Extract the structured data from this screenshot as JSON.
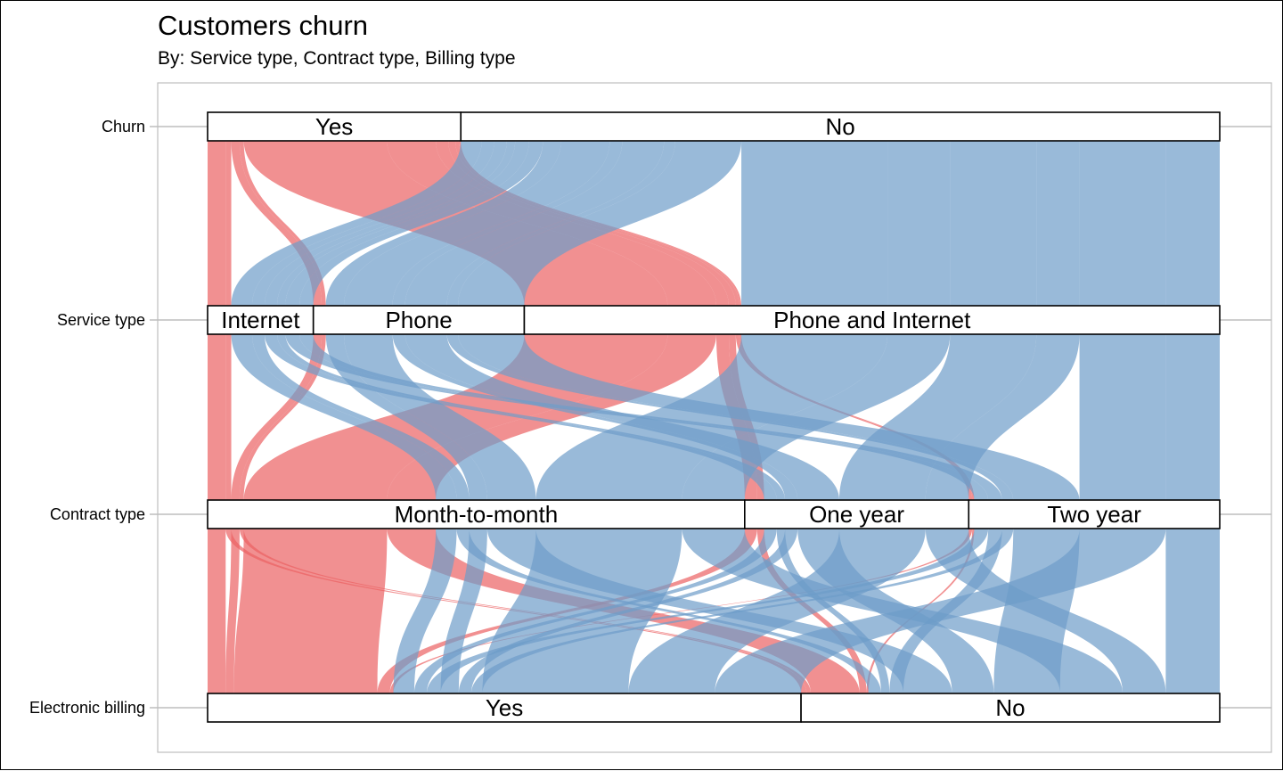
{
  "title": "Customers churn",
  "subtitle": "By: Service type, Contract type, Billing type",
  "colors": {
    "churn_yes": "#EB6163",
    "churn_no": "#6E9DC9",
    "box_fill": "#FFFFFF",
    "box_stroke": "#000000",
    "gridline": "#BEBEBE",
    "panel_border": "#BEBEBE"
  },
  "chart_data": {
    "type": "alluvial",
    "axes": [
      "Churn",
      "Service type",
      "Contract type",
      "Electronic billing"
    ],
    "strata": {
      "Churn": [
        "Yes",
        "No"
      ],
      "Service type": [
        "Internet",
        "Phone",
        "Phone and Internet"
      ],
      "Contract type": [
        "Month-to-month",
        "One year",
        "Two year"
      ],
      "Electronic billing": [
        "Yes",
        "No"
      ]
    },
    "flows": [
      {
        "churn": "Yes",
        "service": "Internet",
        "contract": "Month-to-month",
        "billing": "Yes",
        "value": 130
      },
      {
        "churn": "Yes",
        "service": "Internet",
        "contract": "Month-to-month",
        "billing": "No",
        "value": 40
      },
      {
        "churn": "Yes",
        "service": "Phone",
        "contract": "Month-to-month",
        "billing": "Yes",
        "value": 60
      },
      {
        "churn": "Yes",
        "service": "Phone",
        "contract": "Month-to-month",
        "billing": "No",
        "value": 30
      },
      {
        "churn": "Yes",
        "service": "Phone and Internet",
        "contract": "Month-to-month",
        "billing": "Yes",
        "value": 1030
      },
      {
        "churn": "Yes",
        "service": "Phone and Internet",
        "contract": "Month-to-month",
        "billing": "No",
        "value": 350
      },
      {
        "churn": "Yes",
        "service": "Phone and Internet",
        "contract": "One year",
        "billing": "Yes",
        "value": 90
      },
      {
        "churn": "Yes",
        "service": "Phone and Internet",
        "contract": "One year",
        "billing": "No",
        "value": 50
      },
      {
        "churn": "Yes",
        "service": "Phone and Internet",
        "contract": "Two year",
        "billing": "Yes",
        "value": 25
      },
      {
        "churn": "Yes",
        "service": "Phone and Internet",
        "contract": "Two year",
        "billing": "No",
        "value": 15
      },
      {
        "churn": "No",
        "service": "Internet",
        "contract": "Month-to-month",
        "billing": "Yes",
        "value": 150
      },
      {
        "churn": "No",
        "service": "Internet",
        "contract": "Month-to-month",
        "billing": "No",
        "value": 90
      },
      {
        "churn": "No",
        "service": "Internet",
        "contract": "One year",
        "billing": "Yes",
        "value": 90
      },
      {
        "churn": "No",
        "service": "Internet",
        "contract": "One year",
        "billing": "No",
        "value": 60
      },
      {
        "churn": "No",
        "service": "Internet",
        "contract": "Two year",
        "billing": "Yes",
        "value": 100
      },
      {
        "churn": "No",
        "service": "Internet",
        "contract": "Two year",
        "billing": "No",
        "value": 100
      },
      {
        "churn": "No",
        "service": "Phone",
        "contract": "Month-to-month",
        "billing": "Yes",
        "value": 130
      },
      {
        "churn": "No",
        "service": "Phone",
        "contract": "Month-to-month",
        "billing": "No",
        "value": 350
      },
      {
        "churn": "No",
        "service": "Phone",
        "contract": "One year",
        "billing": "Yes",
        "value": 90
      },
      {
        "churn": "No",
        "service": "Phone",
        "contract": "One year",
        "billing": "No",
        "value": 300
      },
      {
        "churn": "No",
        "service": "Phone",
        "contract": "Two year",
        "billing": "Yes",
        "value": 80
      },
      {
        "churn": "No",
        "service": "Phone",
        "contract": "Two year",
        "billing": "No",
        "value": 476
      },
      {
        "churn": "No",
        "service": "Phone and Internet",
        "contract": "Month-to-month",
        "billing": "Yes",
        "value": 1050
      },
      {
        "churn": "No",
        "service": "Phone and Internet",
        "contract": "Month-to-month",
        "billing": "No",
        "value": 450
      },
      {
        "churn": "No",
        "service": "Phone and Internet",
        "contract": "One year",
        "billing": "Yes",
        "value": 620
      },
      {
        "churn": "No",
        "service": "Phone and Internet",
        "contract": "One year",
        "billing": "No",
        "value": 310
      },
      {
        "churn": "No",
        "service": "Phone and Internet",
        "contract": "Two year",
        "billing": "Yes",
        "value": 620
      },
      {
        "churn": "No",
        "service": "Phone and Internet",
        "contract": "Two year",
        "billing": "No",
        "value": 388
      }
    ],
    "legend": "none",
    "grid": false
  }
}
